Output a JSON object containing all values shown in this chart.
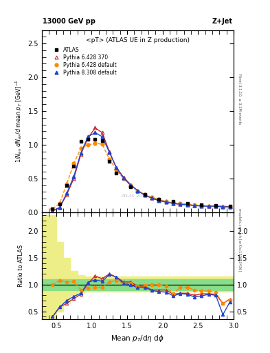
{
  "title_top": "13000 GeV pp",
  "title_right": "Z+Jet",
  "plot_title": "<pT> (ATLAS UE in Z production)",
  "xlabel": "Mean $p_T$/d$\\eta$ d$\\phi$",
  "ylabel_main": "1/N$_{ev}$ dN$_{ev}$/d mean p$_T$ [GeV]$^{-1}$",
  "ylabel_ratio": "Ratio to ATLAS",
  "right_label_main": "Rivet 3.1.10, ≥ 3.1M events",
  "right_label_ratio": "mcplots.cern.ch [arXiv:1306.3436]",
  "watermark": "ATLAS_2019_...",
  "atlas_x": [
    0.45,
    0.55,
    0.65,
    0.75,
    0.85,
    0.95,
    1.05,
    1.15,
    1.25,
    1.35,
    1.55,
    1.75,
    1.95,
    2.15,
    2.35,
    2.55,
    2.75,
    2.95
  ],
  "atlas_y": [
    0.05,
    0.12,
    0.4,
    0.68,
    1.05,
    1.08,
    1.08,
    1.06,
    0.75,
    0.58,
    0.38,
    0.26,
    0.19,
    0.16,
    0.13,
    0.11,
    0.1,
    0.09
  ],
  "py6_370_x": [
    0.45,
    0.55,
    0.65,
    0.75,
    0.85,
    0.95,
    1.05,
    1.15,
    1.25,
    1.35,
    1.45,
    1.55,
    1.65,
    1.75,
    1.85,
    1.95,
    2.05,
    2.15,
    2.25,
    2.35,
    2.45,
    2.55,
    2.65,
    2.75,
    2.85,
    2.95
  ],
  "py6_370_y": [
    0.02,
    0.07,
    0.26,
    0.5,
    0.86,
    1.1,
    1.25,
    1.18,
    0.9,
    0.66,
    0.52,
    0.41,
    0.32,
    0.26,
    0.21,
    0.18,
    0.16,
    0.13,
    0.12,
    0.11,
    0.1,
    0.1,
    0.09,
    0.09,
    0.09,
    0.08
  ],
  "py6_def_x": [
    0.45,
    0.55,
    0.65,
    0.75,
    0.85,
    0.95,
    1.05,
    1.15,
    1.25,
    1.35,
    1.45,
    1.55,
    1.65,
    1.75,
    1.85,
    1.95,
    2.05,
    2.15,
    2.25,
    2.35,
    2.45,
    2.55,
    2.65,
    2.75,
    2.85,
    2.95
  ],
  "py6_def_y": [
    0.05,
    0.13,
    0.42,
    0.72,
    0.95,
    1.0,
    1.02,
    1.01,
    0.79,
    0.63,
    0.5,
    0.4,
    0.32,
    0.26,
    0.22,
    0.19,
    0.16,
    0.14,
    0.13,
    0.12,
    0.11,
    0.1,
    0.09,
    0.09,
    0.08,
    0.08
  ],
  "py8_def_x": [
    0.45,
    0.55,
    0.65,
    0.75,
    0.85,
    0.95,
    1.05,
    1.15,
    1.25,
    1.35,
    1.45,
    1.55,
    1.65,
    1.75,
    1.85,
    1.95,
    2.05,
    2.15,
    2.25,
    2.35,
    2.45,
    2.55,
    2.65,
    2.75,
    2.85,
    2.95
  ],
  "py8_def_y": [
    0.02,
    0.07,
    0.28,
    0.53,
    0.88,
    1.12,
    1.18,
    1.12,
    0.89,
    0.66,
    0.51,
    0.4,
    0.32,
    0.25,
    0.21,
    0.17,
    0.15,
    0.13,
    0.12,
    0.11,
    0.1,
    0.09,
    0.09,
    0.09,
    0.08,
    0.08
  ],
  "ratio_py6_370_x": [
    0.45,
    0.55,
    0.65,
    0.75,
    0.85,
    0.95,
    1.05,
    1.15,
    1.25,
    1.35,
    1.45,
    1.55,
    1.65,
    1.75,
    1.85,
    1.95,
    2.05,
    2.15,
    2.25,
    2.35,
    2.45,
    2.55,
    2.65,
    2.75,
    2.85,
    2.95
  ],
  "ratio_py6_370_y": [
    0.4,
    0.58,
    0.65,
    0.74,
    0.82,
    1.02,
    1.16,
    1.11,
    1.2,
    1.14,
    1.05,
    1.05,
    0.97,
    0.97,
    0.9,
    0.9,
    0.9,
    0.82,
    0.84,
    0.84,
    0.8,
    0.83,
    0.83,
    0.82,
    0.65,
    0.73
  ],
  "ratio_py6_def_x": [
    0.45,
    0.55,
    0.65,
    0.75,
    0.85,
    0.95,
    1.05,
    1.15,
    1.25,
    1.35,
    1.45,
    1.55,
    1.65,
    1.75,
    1.85,
    1.95,
    2.05,
    2.15,
    2.25,
    2.35,
    2.45,
    2.55,
    2.65,
    2.75,
    2.85,
    2.95
  ],
  "ratio_py6_def_y": [
    1.0,
    1.08,
    1.05,
    1.06,
    0.9,
    0.93,
    0.94,
    0.95,
    1.05,
    1.08,
    1.02,
    1.02,
    0.97,
    0.98,
    1.0,
    1.0,
    0.97,
    0.83,
    0.95,
    0.95,
    0.9,
    0.88,
    0.88,
    0.85,
    0.65,
    0.72
  ],
  "ratio_py8_def_x": [
    0.45,
    0.55,
    0.65,
    0.75,
    0.85,
    0.95,
    1.05,
    1.15,
    1.25,
    1.35,
    1.45,
    1.55,
    1.65,
    1.75,
    1.85,
    1.95,
    2.05,
    2.15,
    2.25,
    2.35,
    2.45,
    2.55,
    2.65,
    2.75,
    2.85,
    2.95
  ],
  "ratio_py8_def_y": [
    0.4,
    0.58,
    0.7,
    0.78,
    0.84,
    1.04,
    1.09,
    1.06,
    1.19,
    1.14,
    1.02,
    1.0,
    0.94,
    0.95,
    0.89,
    0.87,
    0.86,
    0.79,
    0.83,
    0.82,
    0.77,
    0.79,
    0.82,
    0.8,
    0.44,
    0.68
  ],
  "green_band_x": [
    0.3,
    0.4,
    0.5,
    0.6,
    0.7,
    0.8,
    0.9,
    1.0,
    1.1,
    1.2,
    1.3,
    1.4,
    1.5,
    1.7,
    1.9,
    2.1,
    2.3,
    2.5,
    2.7,
    2.9,
    3.0
  ],
  "green_band_lo": [
    0.9,
    0.9,
    0.9,
    0.9,
    0.9,
    0.9,
    0.9,
    0.9,
    0.9,
    0.9,
    0.9,
    0.9,
    0.9,
    0.9,
    0.9,
    0.9,
    0.9,
    0.9,
    0.9,
    0.9,
    0.9
  ],
  "green_band_hi": [
    1.1,
    1.1,
    1.1,
    1.1,
    1.1,
    1.1,
    1.1,
    1.1,
    1.1,
    1.1,
    1.1,
    1.1,
    1.1,
    1.1,
    1.1,
    1.1,
    1.1,
    1.1,
    1.1,
    1.1,
    1.1
  ],
  "yellow_band_x": [
    0.3,
    0.4,
    0.5,
    0.6,
    0.7,
    0.8,
    0.9,
    1.0,
    1.1,
    1.2,
    1.3,
    1.4,
    1.5,
    1.7,
    1.9,
    2.1,
    2.3,
    2.5,
    2.7,
    2.9,
    3.0
  ],
  "yellow_band_lo": [
    0.35,
    0.35,
    0.5,
    0.65,
    0.8,
    0.85,
    0.87,
    0.87,
    0.87,
    0.87,
    0.87,
    0.87,
    0.87,
    0.87,
    0.87,
    0.87,
    0.87,
    0.87,
    0.87,
    0.87,
    0.87
  ],
  "yellow_band_hi": [
    2.3,
    2.3,
    1.8,
    1.5,
    1.25,
    1.18,
    1.15,
    1.15,
    1.15,
    1.15,
    1.15,
    1.15,
    1.15,
    1.15,
    1.15,
    1.15,
    1.15,
    1.15,
    1.15,
    1.15,
    1.15
  ],
  "xlim": [
    0.3,
    3.0
  ],
  "ylim_main": [
    0.0,
    2.7
  ],
  "ylim_ratio": [
    0.35,
    2.35
  ],
  "yticks_main": [
    0.0,
    0.5,
    1.0,
    1.5,
    2.0,
    2.5
  ],
  "yticks_ratio": [
    0.5,
    1.0,
    1.5,
    2.0
  ],
  "xticks": [
    0.5,
    1.0,
    1.5,
    2.0,
    2.5,
    3.0
  ],
  "color_atlas": "black",
  "color_py6_370": "#cc2222",
  "color_py6_def": "#ff8800",
  "color_py8_def": "#2244cc",
  "green_color": "#88dd88",
  "yellow_color": "#eeee88"
}
